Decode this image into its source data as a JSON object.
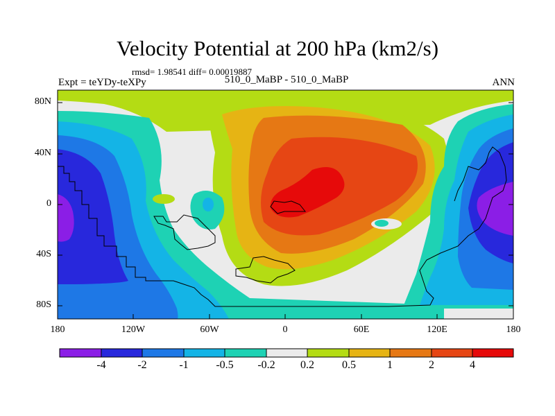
{
  "title": "Velocity Potential at 200 hPa (km2/s)",
  "stats": "rmsd= 1.98541 diff= 0.00019887",
  "left_string": "Expt = teYDy-teXPy",
  "center_string": "510_0_MaBP - 510_0_MaBP",
  "right_string": "ANN",
  "y_ticks": [
    "80N",
    "40N",
    "0",
    "40S",
    "80S"
  ],
  "x_ticks": [
    "180",
    "120W",
    "60W",
    "0",
    "60E",
    "120E",
    "180"
  ],
  "colorbar": {
    "labels": [
      "-4",
      "-2",
      "-1",
      "-0.5",
      "-0.2",
      "0.2",
      "0.5",
      "1",
      "2",
      "4"
    ],
    "colors": [
      "#8B1EE6",
      "#2828DC",
      "#1E78E6",
      "#14B4E6",
      "#1ED2B4",
      "#EBEBEB",
      "#B4DC14",
      "#E6B414",
      "#E67814",
      "#E64614",
      "#E60A0A"
    ]
  },
  "colors": {
    "vp_neg4": "#8B1EE6",
    "vp_neg2": "#2828DC",
    "vp_neg1": "#1E78E6",
    "vp_neg05": "#14B4E6",
    "vp_neg02": "#1ED2B4",
    "vp_zero": "#EBEBEB",
    "vp_pos02": "#B4DC14",
    "vp_pos05": "#E6B414",
    "vp_pos1": "#E67814",
    "vp_pos2": "#E64614",
    "vp_pos4": "#E60A0A"
  }
}
